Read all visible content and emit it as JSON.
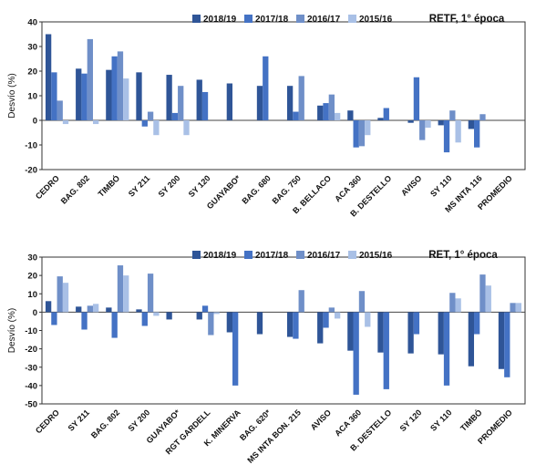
{
  "colors": [
    "#2f5597",
    "#4472c4",
    "#6f8fc8",
    "#a9c0e6"
  ],
  "legend": [
    "2018/19",
    "2017/18",
    "2016/17",
    "2015/16"
  ],
  "chart_data": [
    {
      "type": "bar",
      "title": "RETF, 1° época",
      "ylabel": "Desvío (%)",
      "ylim": [
        -20,
        40
      ],
      "yticks": [
        -20,
        -10,
        0,
        10,
        20,
        30,
        40
      ],
      "legend_position": "top-right",
      "grid": false,
      "categories": [
        "CEDRO",
        "BAG. 802",
        "TIMBÓ",
        "SY 211",
        "SY 200",
        "SY 120",
        "GUAYABO*",
        "BAG. 680",
        "BAG. 750",
        "B. BELLACO",
        "ACA 360",
        "B. DESTELLO",
        "AVISO",
        "SY 110",
        "MS INTA 116",
        "PROMEDIO"
      ],
      "series": [
        {
          "name": "2018/19",
          "values": [
            35,
            21,
            20.5,
            19.5,
            18.5,
            16.5,
            15,
            14,
            14,
            6,
            4,
            1,
            -1,
            -2,
            -3.5,
            null
          ]
        },
        {
          "name": "2017/18",
          "values": [
            19.5,
            19,
            26,
            -2.5,
            3,
            11.5,
            null,
            26,
            3.5,
            7,
            -11,
            5,
            17.5,
            -13,
            -11,
            null
          ]
        },
        {
          "name": "2016/17",
          "values": [
            8,
            33,
            28,
            3.5,
            14,
            null,
            null,
            null,
            18,
            10.5,
            -10.5,
            null,
            -8,
            4,
            2.5,
            null
          ]
        },
        {
          "name": "2015/16",
          "values": [
            -1.5,
            -1.5,
            17,
            -6,
            -6,
            null,
            null,
            null,
            null,
            3,
            -6,
            null,
            -3,
            -9,
            null,
            null
          ]
        }
      ]
    },
    {
      "type": "bar",
      "title": "RET, 1° época",
      "ylabel": "Desvío (%)",
      "ylim": [
        -50,
        30
      ],
      "yticks": [
        -50,
        -40,
        -30,
        -20,
        -10,
        0,
        10,
        20,
        30
      ],
      "legend_position": "top-right",
      "grid": false,
      "categories": [
        "CEDRO",
        "SY 211",
        "BAG. 802",
        "SY 200",
        "GUAYABO*",
        "RGT GARDELL",
        "K. MINERVA",
        "BAG. 620*",
        "MS INTA BON. 215",
        "AVISO",
        "ACA 360",
        "B. DESTELLO",
        "SY 120",
        "SY 110",
        "TIMBÓ",
        "PROMEDIO"
      ],
      "series": [
        {
          "name": "2018/19",
          "values": [
            6,
            3,
            2.5,
            1.5,
            -4,
            -4,
            -11,
            -12,
            -13.5,
            -17,
            -21,
            -22,
            -22.5,
            -23,
            -29.5,
            -31
          ]
        },
        {
          "name": "2017/18",
          "values": [
            -7,
            -9.5,
            -14,
            -7.5,
            null,
            3.5,
            -40,
            null,
            -14.5,
            -8.5,
            -45,
            -42,
            -12,
            -40,
            -12,
            -35.5
          ]
        },
        {
          "name": "2016/17",
          "values": [
            19.5,
            3.5,
            25.5,
            21,
            null,
            -12.5,
            null,
            null,
            12,
            2.5,
            11.5,
            null,
            null,
            10.5,
            20.5,
            5
          ]
        },
        {
          "name": "2015/16",
          "values": [
            16,
            4.5,
            20,
            -2,
            null,
            -1,
            null,
            null,
            null,
            -3.5,
            -8,
            null,
            null,
            7.5,
            14.5,
            5
          ]
        }
      ]
    }
  ]
}
